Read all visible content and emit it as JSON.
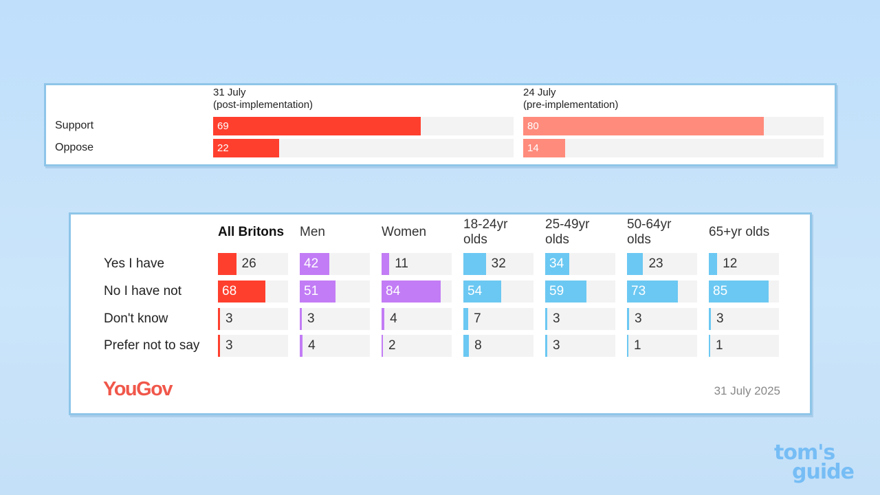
{
  "chart_data": [
    {
      "type": "bar",
      "title": "",
      "orientation": "horizontal",
      "xlim": [
        0,
        100
      ],
      "categories": [
        "Support",
        "Oppose"
      ],
      "series": [
        {
          "name": "31 July (post-implementation)",
          "line1": "31 July",
          "line2": "(post-implementation)",
          "values": [
            69,
            22
          ],
          "color": "#ff3f2e"
        },
        {
          "name": "24 July (pre-implementation)",
          "line1": "24 July",
          "line2": "(pre-implementation)",
          "values": [
            80,
            14
          ],
          "color": "#ff8b7c"
        }
      ]
    },
    {
      "type": "bar",
      "title": "",
      "orientation": "horizontal",
      "xlim": [
        0,
        100
      ],
      "categories": [
        "Yes I have",
        "No I have not",
        "Don't know",
        "Prefer not to say"
      ],
      "series": [
        {
          "name": "All Britons",
          "line1": "All Britons",
          "line2": "",
          "bold": true,
          "values": [
            26,
            68,
            3,
            3
          ],
          "color": "#ff3f2e"
        },
        {
          "name": "Men",
          "line1": "Men",
          "line2": "",
          "values": [
            42,
            51,
            3,
            4
          ],
          "color": "#c27cf5"
        },
        {
          "name": "Women",
          "line1": "Women",
          "line2": "",
          "values": [
            11,
            84,
            4,
            2
          ],
          "color": "#c27cf5"
        },
        {
          "name": "18-24yr olds",
          "line1": "18-24yr",
          "line2": "olds",
          "values": [
            32,
            54,
            7,
            8
          ],
          "color": "#6bc8f2"
        },
        {
          "name": "25-49yr olds",
          "line1": "25-49yr",
          "line2": "olds",
          "values": [
            34,
            59,
            3,
            3
          ],
          "color": "#6bc8f2"
        },
        {
          "name": "50-64yr olds",
          "line1": "50-64yr",
          "line2": "olds",
          "values": [
            23,
            73,
            3,
            1
          ],
          "color": "#6bc8f2"
        },
        {
          "name": "65+yr olds",
          "line1": "65+yr olds",
          "line2": "",
          "values": [
            12,
            85,
            3,
            1
          ],
          "color": "#6bc8f2"
        }
      ]
    }
  ],
  "footer": {
    "brand": "YouGov",
    "date": "31 July 2025"
  },
  "watermark": {
    "line1": "tom's",
    "line2": "guide"
  }
}
